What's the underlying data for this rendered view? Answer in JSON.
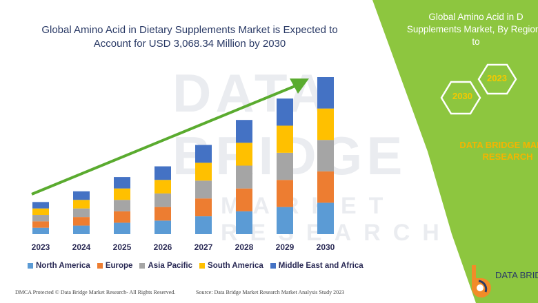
{
  "title": {
    "line1": "Global Amino Acid in Dietary Supplements Market is Expected to",
    "line2": "Account for USD 3,068.34 Million by 2030"
  },
  "watermark": {
    "text": "DATA BRIDGE",
    "sub": "MARKET RESEARCH"
  },
  "panel": {
    "title_line1": "Global Amino Acid in D",
    "title_line2": "Supplements Market, By Regions",
    "title_line3": "to",
    "hex_1": "2030",
    "hex_2": "2023",
    "brand_line1": "DATA BRIDGE MARKE",
    "brand_line2": "RESEARCH",
    "green": "#8dc63f",
    "hex_stroke": "#ffffff"
  },
  "logo": {
    "text": "DATA BRID",
    "orange": "#f28c28",
    "navy": "#2a3a66"
  },
  "footer": {
    "left": "DMCA Protected © Data Bridge Market Research-  All Rights Reserved.",
    "right": "Source: Data Bridge Market Research  Market Analysis Study 2023"
  },
  "chart_data": {
    "type": "bar",
    "stacked": true,
    "categories": [
      "2023",
      "2024",
      "2025",
      "2026",
      "2027",
      "2028",
      "2029",
      "2030"
    ],
    "series": [
      {
        "name": "North America",
        "color": "#5b9bd5",
        "values": [
          9,
          12,
          16,
          19,
          25,
          32,
          38,
          44
        ]
      },
      {
        "name": "Europe",
        "color": "#ed7d31",
        "values": [
          9,
          12,
          16,
          19,
          25,
          32,
          38,
          44
        ]
      },
      {
        "name": "Asia Pacific",
        "color": "#a5a5a5",
        "values": [
          9,
          12,
          16,
          19,
          25,
          32,
          38,
          44
        ]
      },
      {
        "name": "South America",
        "color": "#ffc000",
        "values": [
          9,
          12,
          16,
          19,
          25,
          32,
          38,
          44
        ]
      },
      {
        "name": "Middle East and Africa",
        "color": "#4472c4",
        "values": [
          9,
          12,
          16,
          19,
          25,
          32,
          38,
          44
        ]
      }
    ],
    "ylim": [
      0,
      220
    ],
    "grid": false,
    "legend_position": "bottom",
    "trend_arrow": true,
    "arrow_color": "#5aab2f",
    "xlabel": "",
    "ylabel": ""
  }
}
